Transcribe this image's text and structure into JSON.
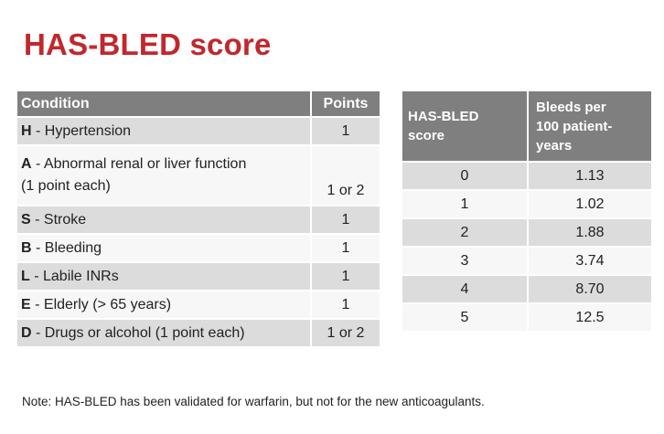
{
  "title": "HAS-BLED score",
  "conditions_table": {
    "headers": [
      "Condition",
      "Points"
    ],
    "rows": [
      {
        "letter": "H",
        "text": " - Hypertension",
        "text2": "",
        "points": "1"
      },
      {
        "letter": "A",
        "text": " - Abnormal renal or liver function",
        "text2": "(1 point each)",
        "points": "1 or 2"
      },
      {
        "letter": "S",
        "text": " - Stroke",
        "text2": "",
        "points": "1"
      },
      {
        "letter": "B",
        "text": " - Bleeding",
        "text2": "",
        "points": "1"
      },
      {
        "letter": "L",
        "text": " - Labile INRs",
        "text2": "",
        "points": "1"
      },
      {
        "letter": "E",
        "text": " - Elderly (> 65 years)",
        "text2": "",
        "points": "1"
      },
      {
        "letter": "D",
        "text": " - Drugs or alcohol (1 point each)",
        "text2": "",
        "points": "1 or 2"
      }
    ]
  },
  "bleeds_table": {
    "header_score_l1": "HAS-BLED",
    "header_score_l2": "score",
    "header_bleeds_l1": "Bleeds per",
    "header_bleeds_l2": "100 patient-",
    "header_bleeds_l3": "years",
    "rows": [
      {
        "score": "0",
        "bleeds": "1.13"
      },
      {
        "score": "1",
        "bleeds": "1.02"
      },
      {
        "score": "2",
        "bleeds": "1.88"
      },
      {
        "score": "3",
        "bleeds": "3.74"
      },
      {
        "score": "4",
        "bleeds": "8.70"
      },
      {
        "score": "5",
        "bleeds": "12.5"
      }
    ]
  },
  "note": "Note: HAS-BLED has been validated for warfarin, but not for the new anticoagulants."
}
